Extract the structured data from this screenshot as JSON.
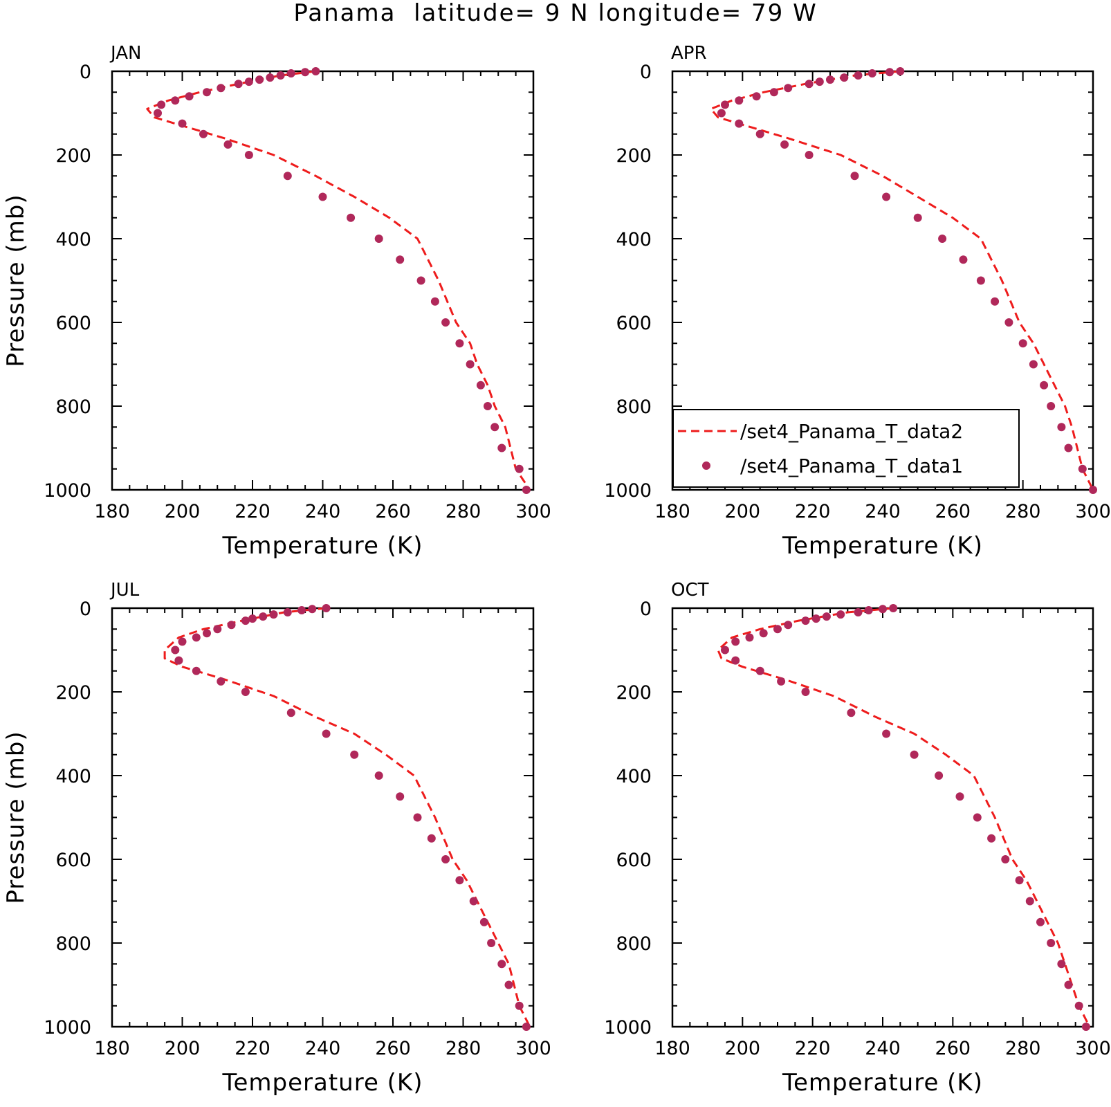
{
  "title": "Panama  latitude= 9 N longitude= 79 W",
  "legend": [
    {
      "label": "/set4_Panama_T_data2",
      "style": "dashed-line",
      "color": "#ee1c1c"
    },
    {
      "label": "/set4_Panama_T_data1",
      "style": "dot",
      "color": "#b0285a"
    }
  ],
  "colors": {
    "line": "#ee1c1c",
    "marker": "#b0285a",
    "axes": "#000000"
  },
  "chart_data": [
    {
      "type": "line",
      "panel": "JAN",
      "xlabel": "Temperature (K)",
      "ylabel": "Pressure (mb)",
      "xlim": [
        180,
        300
      ],
      "ylim": [
        1000,
        0
      ],
      "xticks": [
        "180",
        "200",
        "220",
        "240",
        "260",
        "280",
        "300"
      ],
      "yticks": [
        "0",
        "200",
        "400",
        "600",
        "800",
        "1000"
      ],
      "series": [
        {
          "name": "/set4_Panama_T_data2",
          "style": "dashed-line",
          "x": [
            238,
            228,
            216,
            205,
            196,
            190,
            192,
            200,
            212,
            226,
            238,
            249,
            259,
            267,
            273,
            278,
            282,
            284,
            287,
            289,
            292,
            295,
            299
          ],
          "y": [
            0,
            10,
            30,
            50,
            70,
            90,
            110,
            130,
            160,
            200,
            250,
            300,
            350,
            400,
            500,
            600,
            650,
            700,
            750,
            800,
            850,
            950,
            1000
          ]
        },
        {
          "name": "/set4_Panama_T_data1",
          "style": "dot",
          "x": [
            238,
            235,
            231,
            228,
            225,
            222,
            219,
            216,
            211,
            207,
            202,
            198,
            194,
            193,
            200,
            206,
            213,
            219,
            230,
            240,
            248,
            256,
            262,
            268,
            272,
            275,
            279,
            282,
            285,
            287,
            289,
            291,
            296,
            298
          ],
          "y": [
            0,
            2,
            5,
            10,
            15,
            20,
            25,
            30,
            40,
            50,
            60,
            70,
            80,
            100,
            125,
            150,
            175,
            200,
            250,
            300,
            350,
            400,
            450,
            500,
            550,
            600,
            650,
            700,
            750,
            800,
            850,
            900,
            950,
            1000
          ]
        }
      ]
    },
    {
      "type": "line",
      "panel": "APR",
      "xlabel": "Temperature (K)",
      "ylabel": "",
      "xlim": [
        180,
        300
      ],
      "ylim": [
        1000,
        0
      ],
      "xticks": [
        "180",
        "200",
        "220",
        "240",
        "260",
        "280",
        "300"
      ],
      "yticks": [
        "0",
        "200",
        "400",
        "600",
        "800",
        "1000"
      ],
      "series": [
        {
          "name": "/set4_Panama_T_data2",
          "style": "dashed-line",
          "x": [
            245,
            232,
            218,
            206,
            197,
            191,
            193,
            201,
            213,
            228,
            240,
            250,
            260,
            268,
            274,
            279,
            283,
            286,
            289,
            292,
            294,
            297,
            300
          ],
          "y": [
            0,
            10,
            30,
            50,
            70,
            90,
            110,
            130,
            160,
            200,
            250,
            300,
            350,
            400,
            500,
            600,
            650,
            700,
            750,
            800,
            850,
            950,
            1000
          ]
        },
        {
          "name": "/set4_Panama_T_data1",
          "style": "dot",
          "x": [
            245,
            242,
            237,
            233,
            229,
            225,
            222,
            219,
            213,
            209,
            204,
            199,
            195,
            194,
            199,
            205,
            212,
            219,
            232,
            241,
            250,
            257,
            263,
            268,
            272,
            276,
            280,
            283,
            286,
            288,
            291,
            293,
            297,
            300
          ],
          "y": [
            0,
            2,
            5,
            10,
            15,
            20,
            25,
            30,
            40,
            50,
            60,
            70,
            80,
            100,
            125,
            150,
            175,
            200,
            250,
            300,
            350,
            400,
            450,
            500,
            550,
            600,
            650,
            700,
            750,
            800,
            850,
            900,
            950,
            1000
          ]
        }
      ]
    },
    {
      "type": "line",
      "panel": "JUL",
      "xlabel": "Temperature (K)",
      "ylabel": "Pressure (mb)",
      "xlim": [
        180,
        300
      ],
      "ylim": [
        1000,
        0
      ],
      "xticks": [
        "180",
        "200",
        "220",
        "240",
        "260",
        "280",
        "300"
      ],
      "yticks": [
        "0",
        "200",
        "400",
        "600",
        "800",
        "1000"
      ],
      "series": [
        {
          "name": "/set4_Panama_T_data2",
          "style": "dashed-line",
          "x": [
            241,
            229,
            217,
            206,
            199,
            195,
            195,
            200,
            212,
            226,
            238,
            249,
            258,
            266,
            272,
            277,
            281,
            284,
            287,
            290,
            293,
            296,
            299
          ],
          "y": [
            0,
            10,
            30,
            50,
            70,
            100,
            120,
            140,
            170,
            210,
            260,
            300,
            350,
            400,
            500,
            600,
            650,
            700,
            750,
            800,
            850,
            950,
            1000
          ]
        },
        {
          "name": "/set4_Panama_T_data1",
          "style": "dot",
          "x": [
            241,
            237,
            234,
            230,
            226,
            223,
            220,
            218,
            214,
            210,
            207,
            204,
            200,
            198,
            199,
            204,
            211,
            218,
            231,
            241,
            249,
            256,
            262,
            267,
            271,
            275,
            279,
            283,
            286,
            288,
            291,
            293,
            296,
            298
          ],
          "y": [
            0,
            2,
            5,
            10,
            15,
            20,
            25,
            30,
            40,
            50,
            60,
            70,
            80,
            100,
            125,
            150,
            175,
            200,
            250,
            300,
            350,
            400,
            450,
            500,
            550,
            600,
            650,
            700,
            750,
            800,
            850,
            900,
            950,
            1000
          ]
        }
      ]
    },
    {
      "type": "line",
      "panel": "OCT",
      "xlabel": "Temperature (K)",
      "ylabel": "",
      "xlim": [
        180,
        300
      ],
      "ylim": [
        1000,
        0
      ],
      "xticks": [
        "180",
        "200",
        "220",
        "240",
        "260",
        "280",
        "300"
      ],
      "yticks": [
        "0",
        "200",
        "400",
        "600",
        "800",
        "1000"
      ],
      "series": [
        {
          "name": "/set4_Panama_T_data2",
          "style": "dashed-line",
          "x": [
            243,
            230,
            216,
            205,
            197,
            193,
            194,
            200,
            212,
            226,
            238,
            249,
            258,
            266,
            272,
            277,
            281,
            284,
            287,
            290,
            292,
            296,
            299
          ],
          "y": [
            0,
            10,
            30,
            50,
            70,
            100,
            120,
            140,
            170,
            210,
            260,
            300,
            350,
            400,
            500,
            600,
            650,
            700,
            750,
            800,
            850,
            950,
            1000
          ]
        },
        {
          "name": "/set4_Panama_T_data1",
          "style": "dot",
          "x": [
            243,
            240,
            236,
            233,
            228,
            224,
            221,
            218,
            213,
            210,
            206,
            202,
            198,
            195,
            198,
            205,
            211,
            218,
            231,
            241,
            249,
            256,
            262,
            267,
            271,
            275,
            279,
            282,
            285,
            288,
            291,
            293,
            296,
            298
          ],
          "y": [
            0,
            2,
            5,
            10,
            15,
            20,
            25,
            30,
            40,
            50,
            60,
            70,
            80,
            100,
            125,
            150,
            175,
            200,
            250,
            300,
            350,
            400,
            450,
            500,
            550,
            600,
            650,
            700,
            750,
            800,
            850,
            900,
            950,
            1000
          ]
        }
      ]
    }
  ]
}
